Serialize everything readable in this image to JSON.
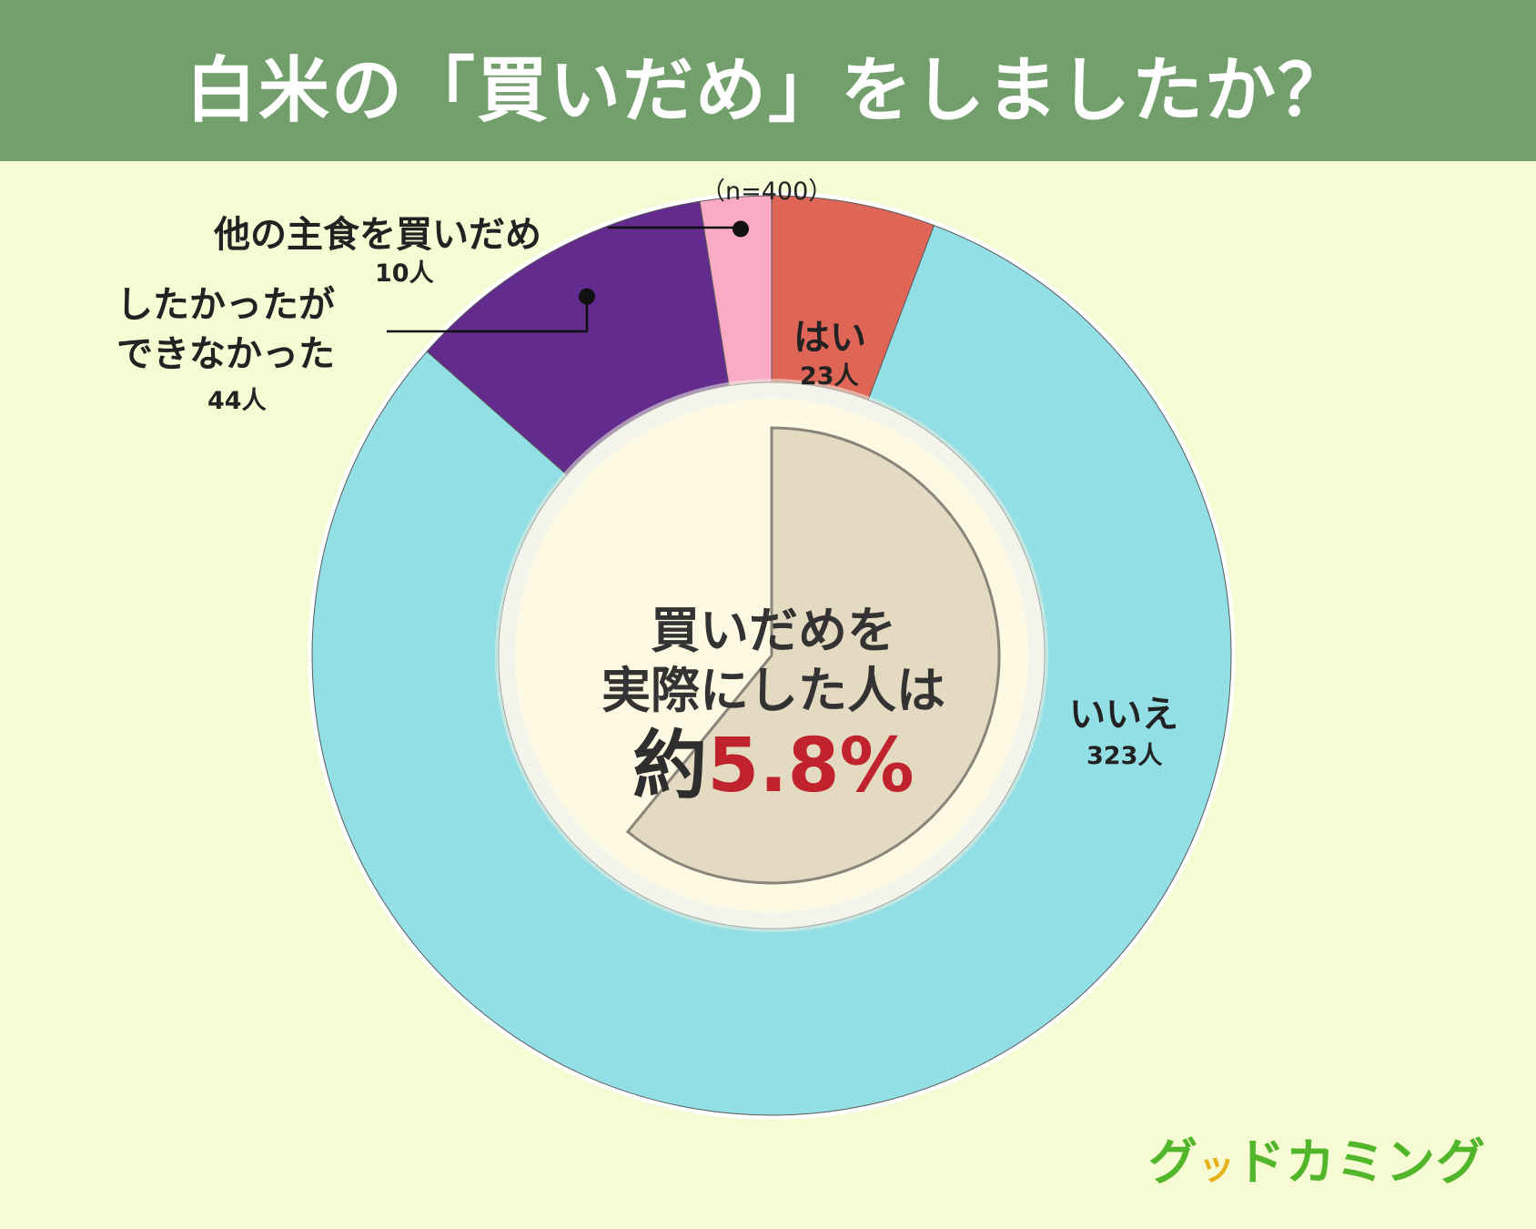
{
  "header": {
    "title": "白米の「買いだめ」をしましたか？"
  },
  "chart_data": {
    "type": "pie",
    "note_n": "（n=400）",
    "total": 400,
    "slices": [
      {
        "label": "はい",
        "count_label": "23人",
        "value": 23,
        "color": "#df6657"
      },
      {
        "label": "いいえ",
        "count_label": "323人",
        "value": 323,
        "color": "#93dfe6"
      },
      {
        "label": "したかったができなかった",
        "label_lines": [
          "したかったが",
          "できなかった"
        ],
        "count_label": "44人",
        "value": 44,
        "color": "#632b8d"
      },
      {
        "label": "他の主食を買いだめ",
        "count_label": "10人",
        "value": 10,
        "color": "#fbaac6"
      }
    ],
    "center": {
      "line1": "買いだめを",
      "line2": "実際にした人は",
      "prefix": "約",
      "value": "5.8%",
      "highlight_fraction": 0.058
    }
  },
  "logo": {
    "text_main": "グ",
    "text_accent": "ッ",
    "text_rest": "ドカミング"
  }
}
